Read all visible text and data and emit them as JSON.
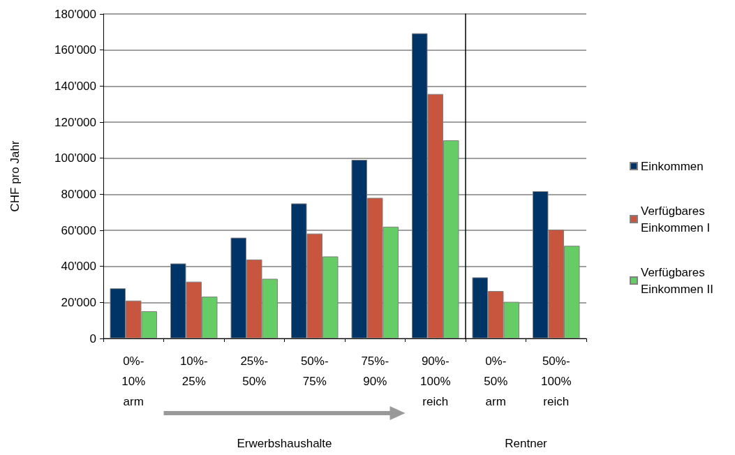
{
  "chart_data": [
    {
      "type": "bar",
      "ylabel": "CHF pro Jahr",
      "xlabel": "Erwerbshaushalte",
      "categories": [
        "0%-\n10%\narm",
        "10%-\n25%",
        "25%-\n50%",
        "50%-\n75%",
        "75%-\n90%",
        "90%-\n100%\nreich"
      ],
      "series": [
        {
          "color": "#003366",
          "values": [
            27800,
            41600,
            55900,
            74900,
            99100,
            169300
          ]
        },
        {
          "color": "#c8553d",
          "values": [
            21000,
            31500,
            43800,
            58200,
            78000,
            135600
          ]
        },
        {
          "color": "#66cc66",
          "values": [
            15100,
            23200,
            33100,
            45500,
            62000,
            109900
          ]
        }
      ],
      "ylim": [
        0,
        180000
      ],
      "yticks": [
        0,
        {
          "value": 20000,
          "label": "20'000"
        },
        {
          "value": 40000,
          "label": "40'000"
        },
        {
          "value": 60000,
          "label": "60'000"
        },
        {
          "value": 80000,
          "label": "80'000"
        },
        {
          "value": 100000,
          "label": "100'000"
        },
        {
          "value": 120000,
          "label": "120'000"
        },
        {
          "value": 140000,
          "label": "140'000"
        },
        {
          "value": 160000,
          "label": "160'000"
        },
        {
          "value": 180000,
          "label": "180'000"
        }
      ],
      "grid": "y"
    },
    {
      "type": "bar",
      "xlabel": "Rentner",
      "categories": [
        "0%-\n50%\narm",
        "50%-\n100%\nreich"
      ],
      "series": [
        {
          "name": "Einkommen",
          "color": "#003366",
          "values": [
            33900,
            81700
          ]
        },
        {
          "name": "Verfügbares Einkommen I",
          "color": "#c8553d",
          "values": [
            26300,
            60400
          ]
        },
        {
          "name": "Verfügbares Einkommen II",
          "color": "#66cc66",
          "values": [
            20300,
            51400
          ]
        }
      ],
      "ylim": [
        0,
        180000
      ],
      "yticks": [
        0,
        20000,
        40000,
        60000,
        80000,
        100000,
        120000,
        140000,
        160000,
        180000
      ],
      "tick_labels": "x",
      "grid": "y",
      "legend": "right"
    }
  ]
}
